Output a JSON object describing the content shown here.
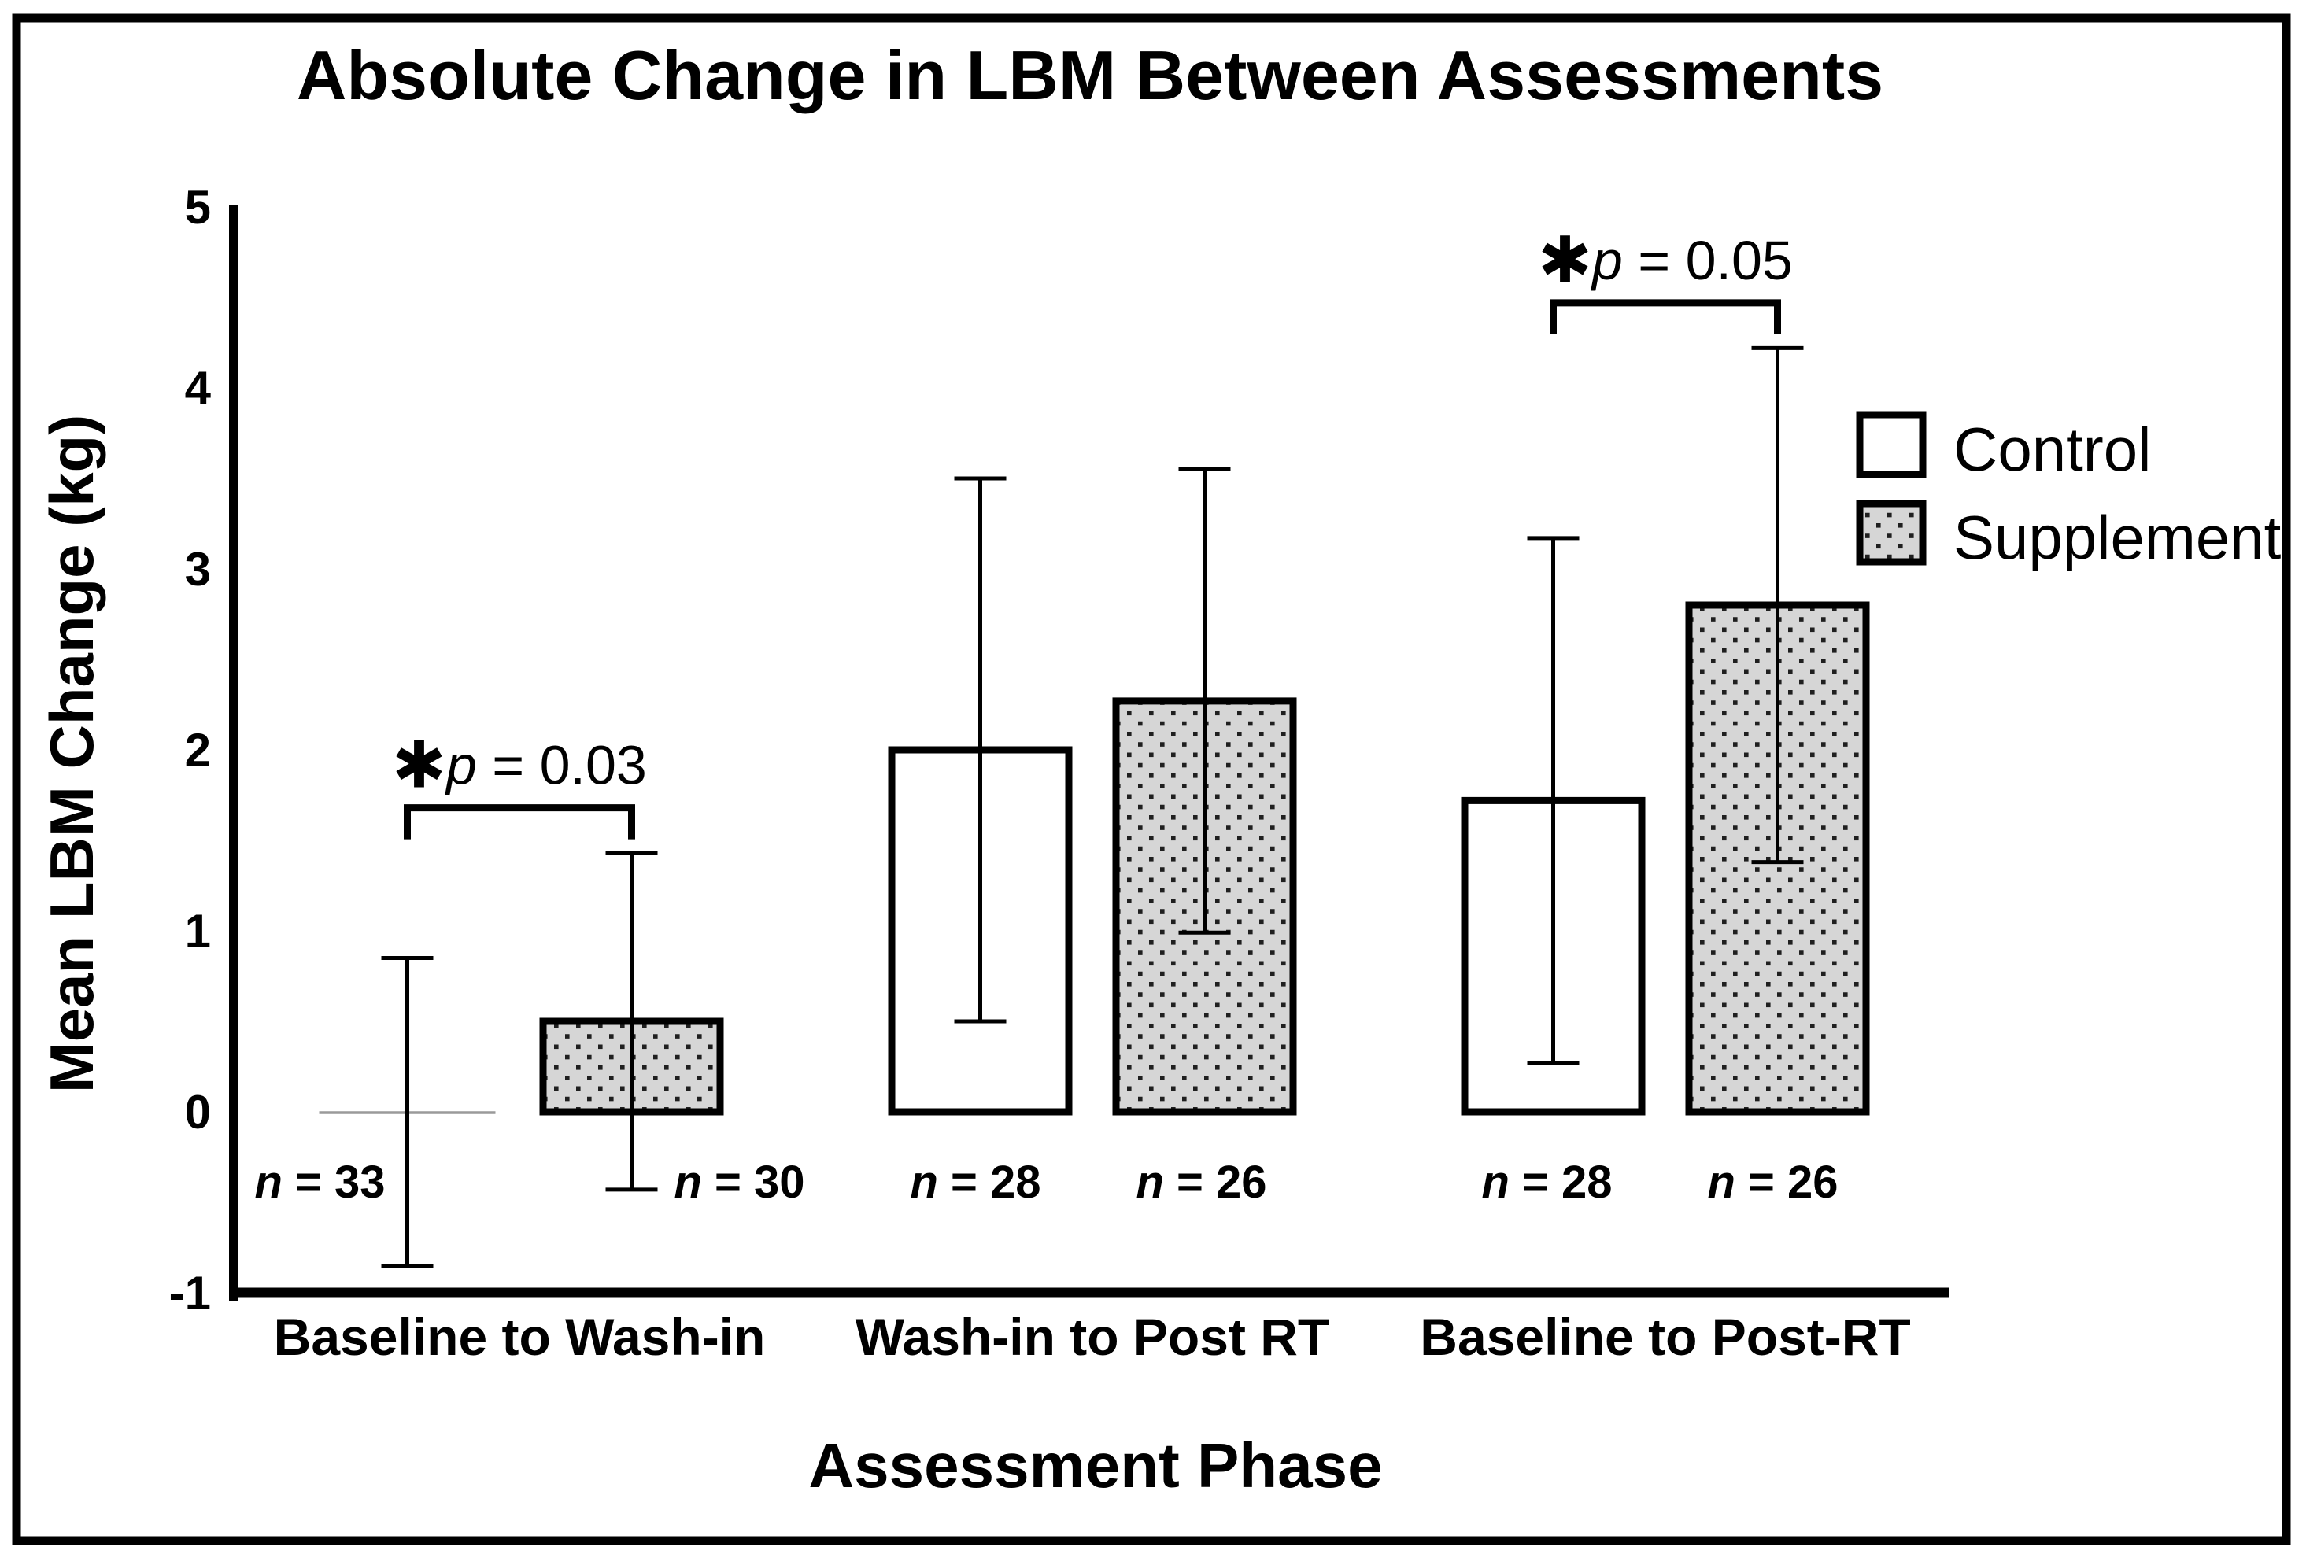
{
  "chart_data": {
    "type": "bar",
    "title": "Absolute Change in LBM Between Assessments",
    "xlabel": "Assessment Phase",
    "ylabel": "Mean LBM Change (kg)",
    "ylim": [
      -1,
      5
    ],
    "yticks": [
      "5",
      "4",
      "3",
      "2",
      "1",
      "0",
      "-1"
    ],
    "grid": false,
    "legend_position": "upper right",
    "categories": [
      "Baseline to Wash-in",
      "Wash-in to Post RT",
      "Baseline to Post-RT"
    ],
    "n_prefix": "n",
    "series": [
      {
        "name": "Control",
        "style": "white",
        "values": [
          0.0,
          2.0,
          1.72
        ],
        "errors": [
          0.85,
          1.5,
          1.45
        ],
        "n": [
          "= 33",
          "= 28",
          "= 28"
        ]
      },
      {
        "name": "Supplement",
        "style": "stipple",
        "values": [
          0.5,
          2.27,
          2.8
        ],
        "errors": [
          0.93,
          1.28,
          1.42
        ],
        "n": [
          "= 30",
          "= 26",
          "= 26"
        ]
      }
    ],
    "annotations": [
      {
        "group_index": 0,
        "star": "✱",
        "p_var": "p",
        "p_value": "= 0.03",
        "y": 1.68
      },
      {
        "group_index": 2,
        "star": "✱",
        "p_var": "p",
        "p_value": "= 0.05",
        "y": 4.47
      }
    ],
    "colors": {
      "ink": "#000000",
      "bar_fill_control": "#ffffff",
      "stipple_base": "#d6d6d6",
      "stipple_dot": "#1f1f1f",
      "zero_bar_line": "#9a9a9a",
      "background": "#ffffff"
    }
  }
}
